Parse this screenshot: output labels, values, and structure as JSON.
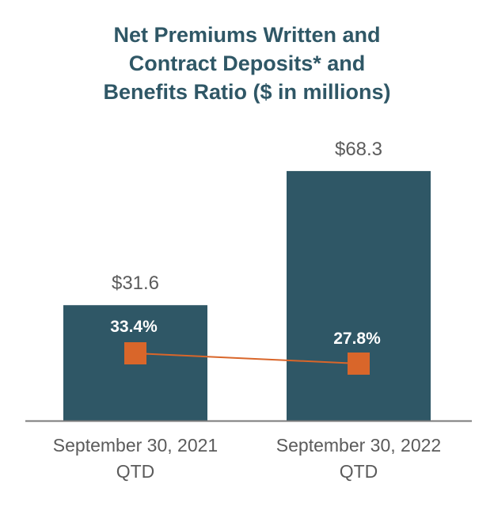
{
  "chart_data": {
    "type": "bar",
    "title_lines": [
      "Net Premiums Written and",
      "Contract Deposits* and",
      "Benefits Ratio ($ in millions)"
    ],
    "categories": [
      [
        "September 30, 2021",
        "QTD"
      ],
      [
        "September 30, 2022",
        "QTD"
      ]
    ],
    "series": [
      {
        "type": "bar",
        "values": [
          31.6,
          68.3
        ],
        "labels": [
          "$31.6",
          "$68.3"
        ],
        "color": "#2f5766"
      },
      {
        "type": "line",
        "values": [
          33.4,
          27.8
        ],
        "labels": [
          "33.4%",
          "27.8%"
        ],
        "color": "#d9662a"
      }
    ],
    "bar_ylim": [
      0,
      75
    ],
    "ratio_ylim": [
      0,
      100
    ],
    "grid": false,
    "legend": "none",
    "axis_color": "#7a7a7a",
    "label_color": "#5b5b5b"
  }
}
